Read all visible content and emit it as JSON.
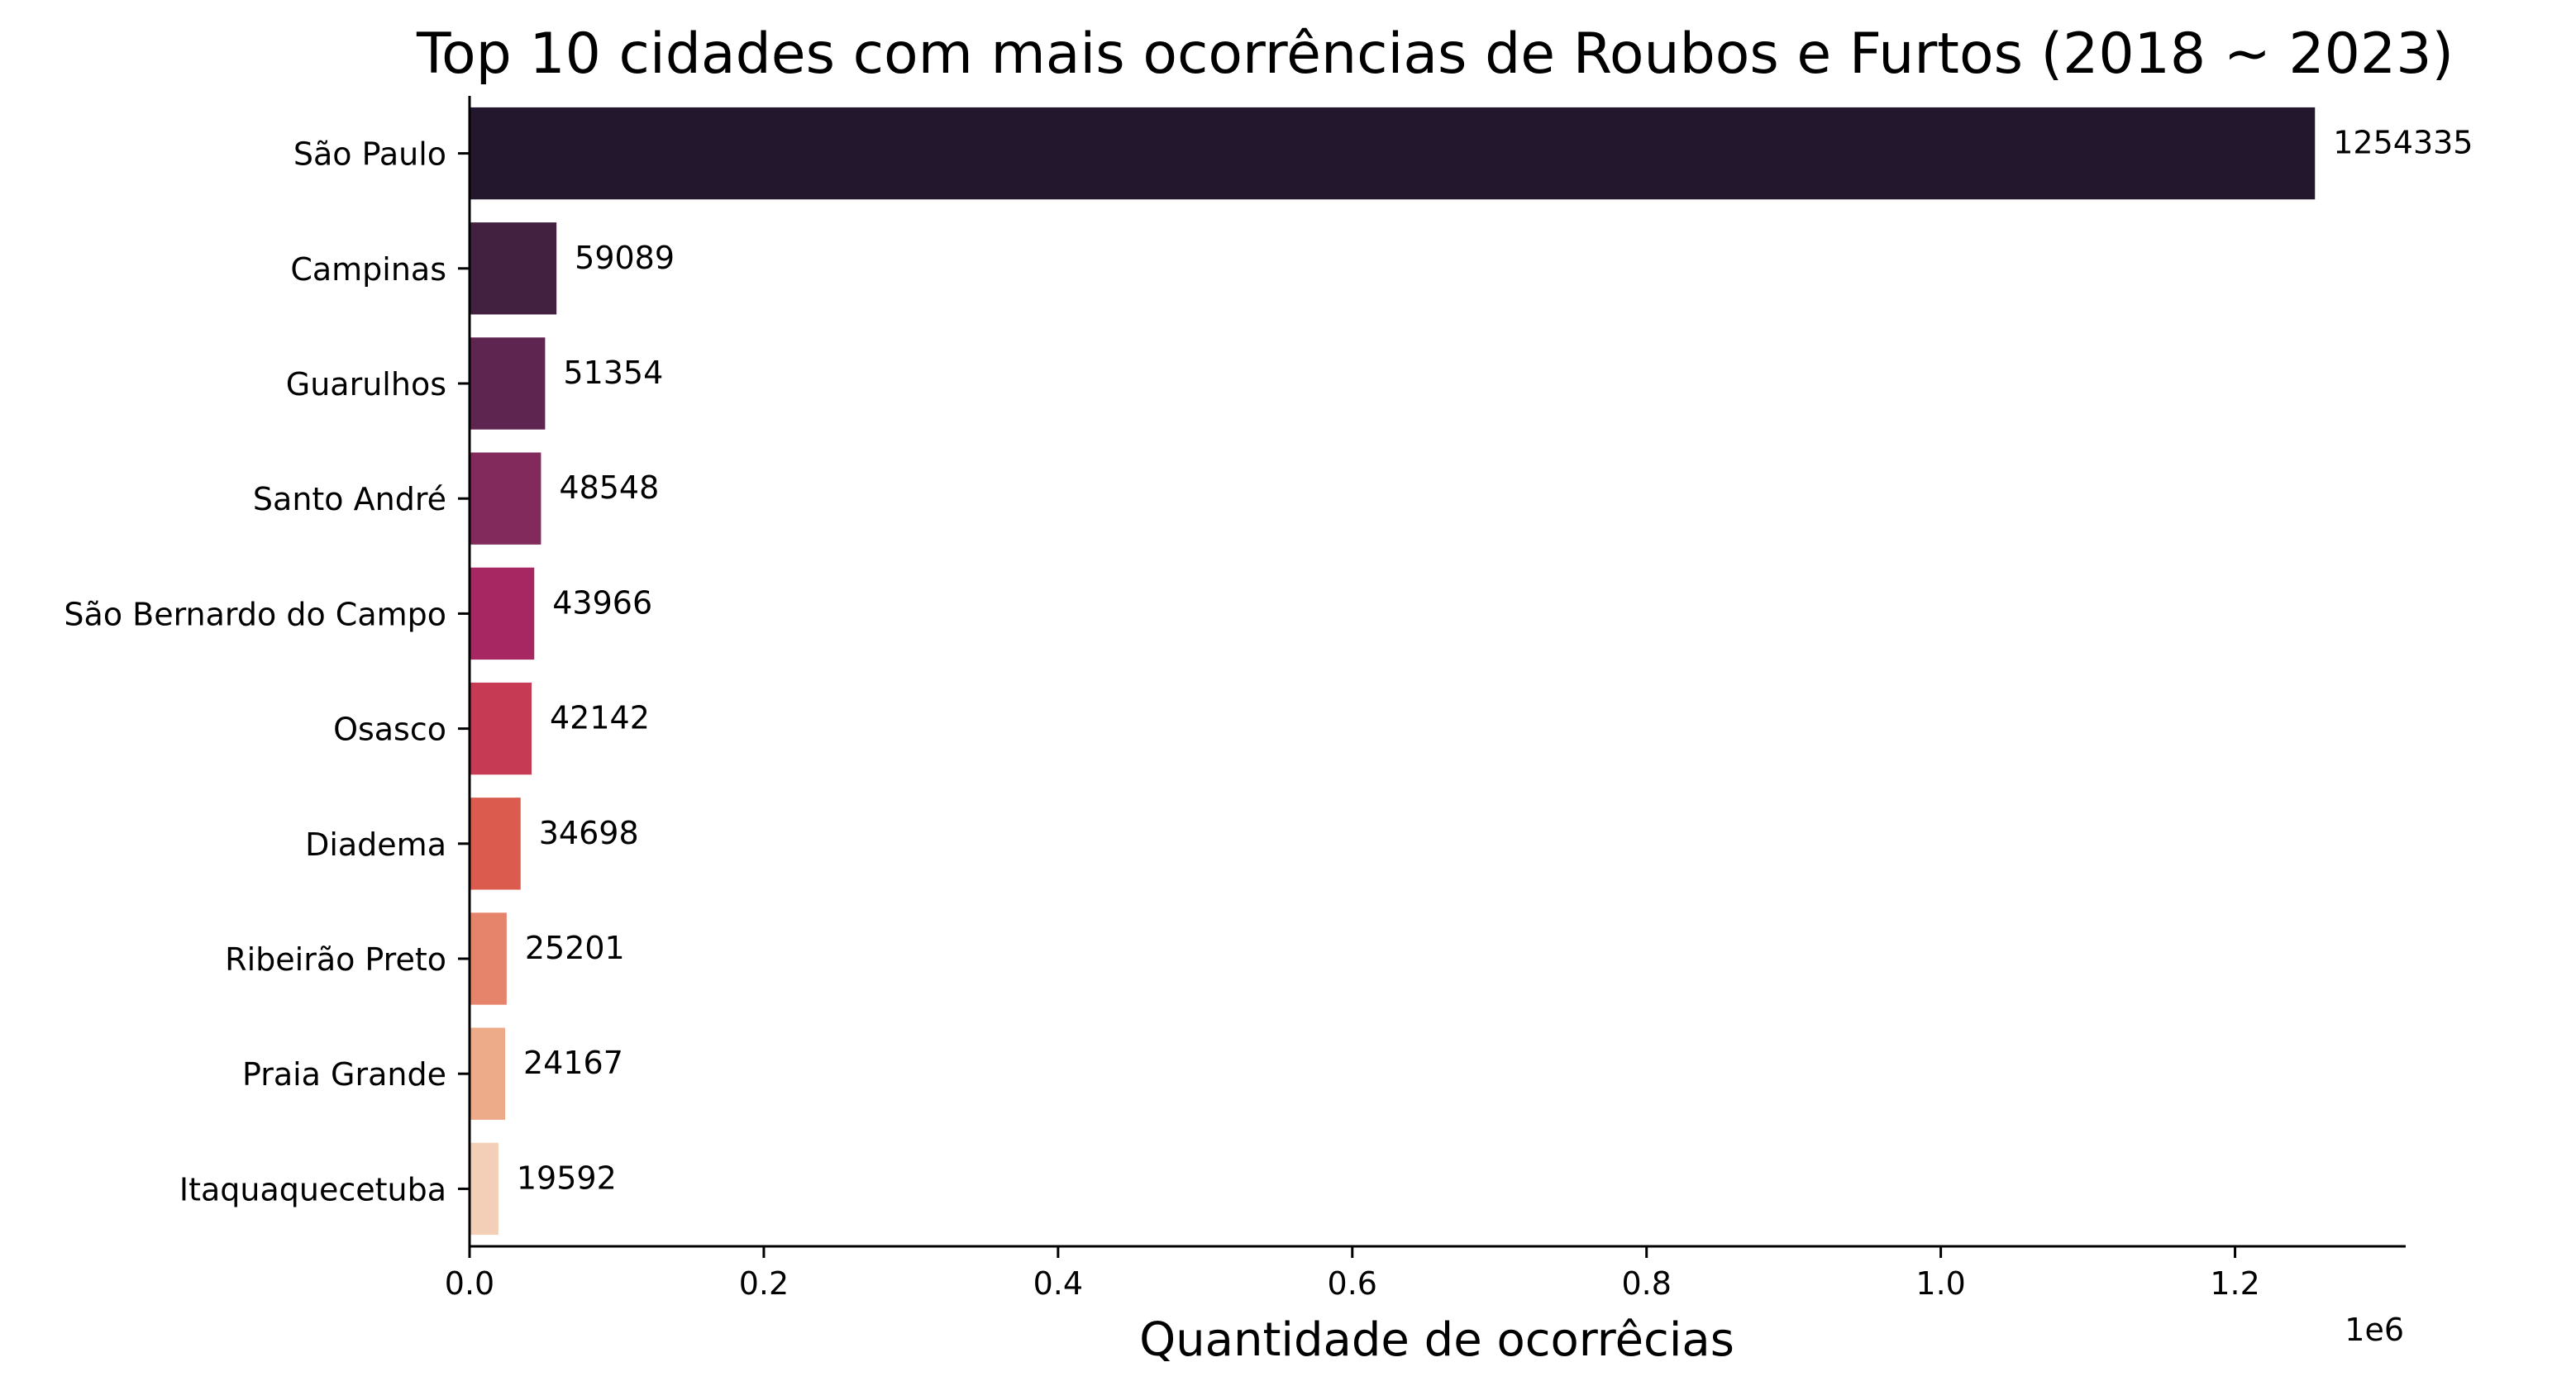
{
  "chart_data": {
    "type": "bar",
    "orientation": "horizontal",
    "title": "Top 10 cidades com mais ocorrências de Roubos e Furtos (2018 ~ 2023)",
    "xlabel": "Quantidade de ocorrêcias",
    "ylabel": "",
    "x_offset_label": "1e6",
    "x_scale": 1000000,
    "xlim": [
      0,
      1316000
    ],
    "x_ticks": [
      0,
      200000,
      400000,
      600000,
      800000,
      1000000,
      1200000
    ],
    "x_tick_labels": [
      "0.0",
      "0.2",
      "0.4",
      "0.6",
      "0.8",
      "1.0",
      "1.2"
    ],
    "grid": false,
    "categories": [
      "São Paulo",
      "Campinas",
      "Guarulhos",
      "Santo André",
      "São Bernardo do Campo",
      "Osasco",
      "Diadema",
      "Ribeirão Preto",
      "Praia Grande",
      "Itaquaquecetuba"
    ],
    "values": [
      1254335,
      59089,
      51354,
      48548,
      43966,
      42142,
      34698,
      25201,
      24167,
      19592
    ],
    "data_labels": [
      "1254335",
      "59089",
      "51354",
      "48548",
      "43966",
      "42142",
      "34698",
      "25201",
      "24167",
      "19592"
    ],
    "colors": [
      "#23172d",
      "#42203f",
      "#5e2550",
      "#822a5c",
      "#a72762",
      "#c73a54",
      "#db5c4e",
      "#e5846a",
      "#edab8a",
      "#f2cfb6"
    ]
  }
}
